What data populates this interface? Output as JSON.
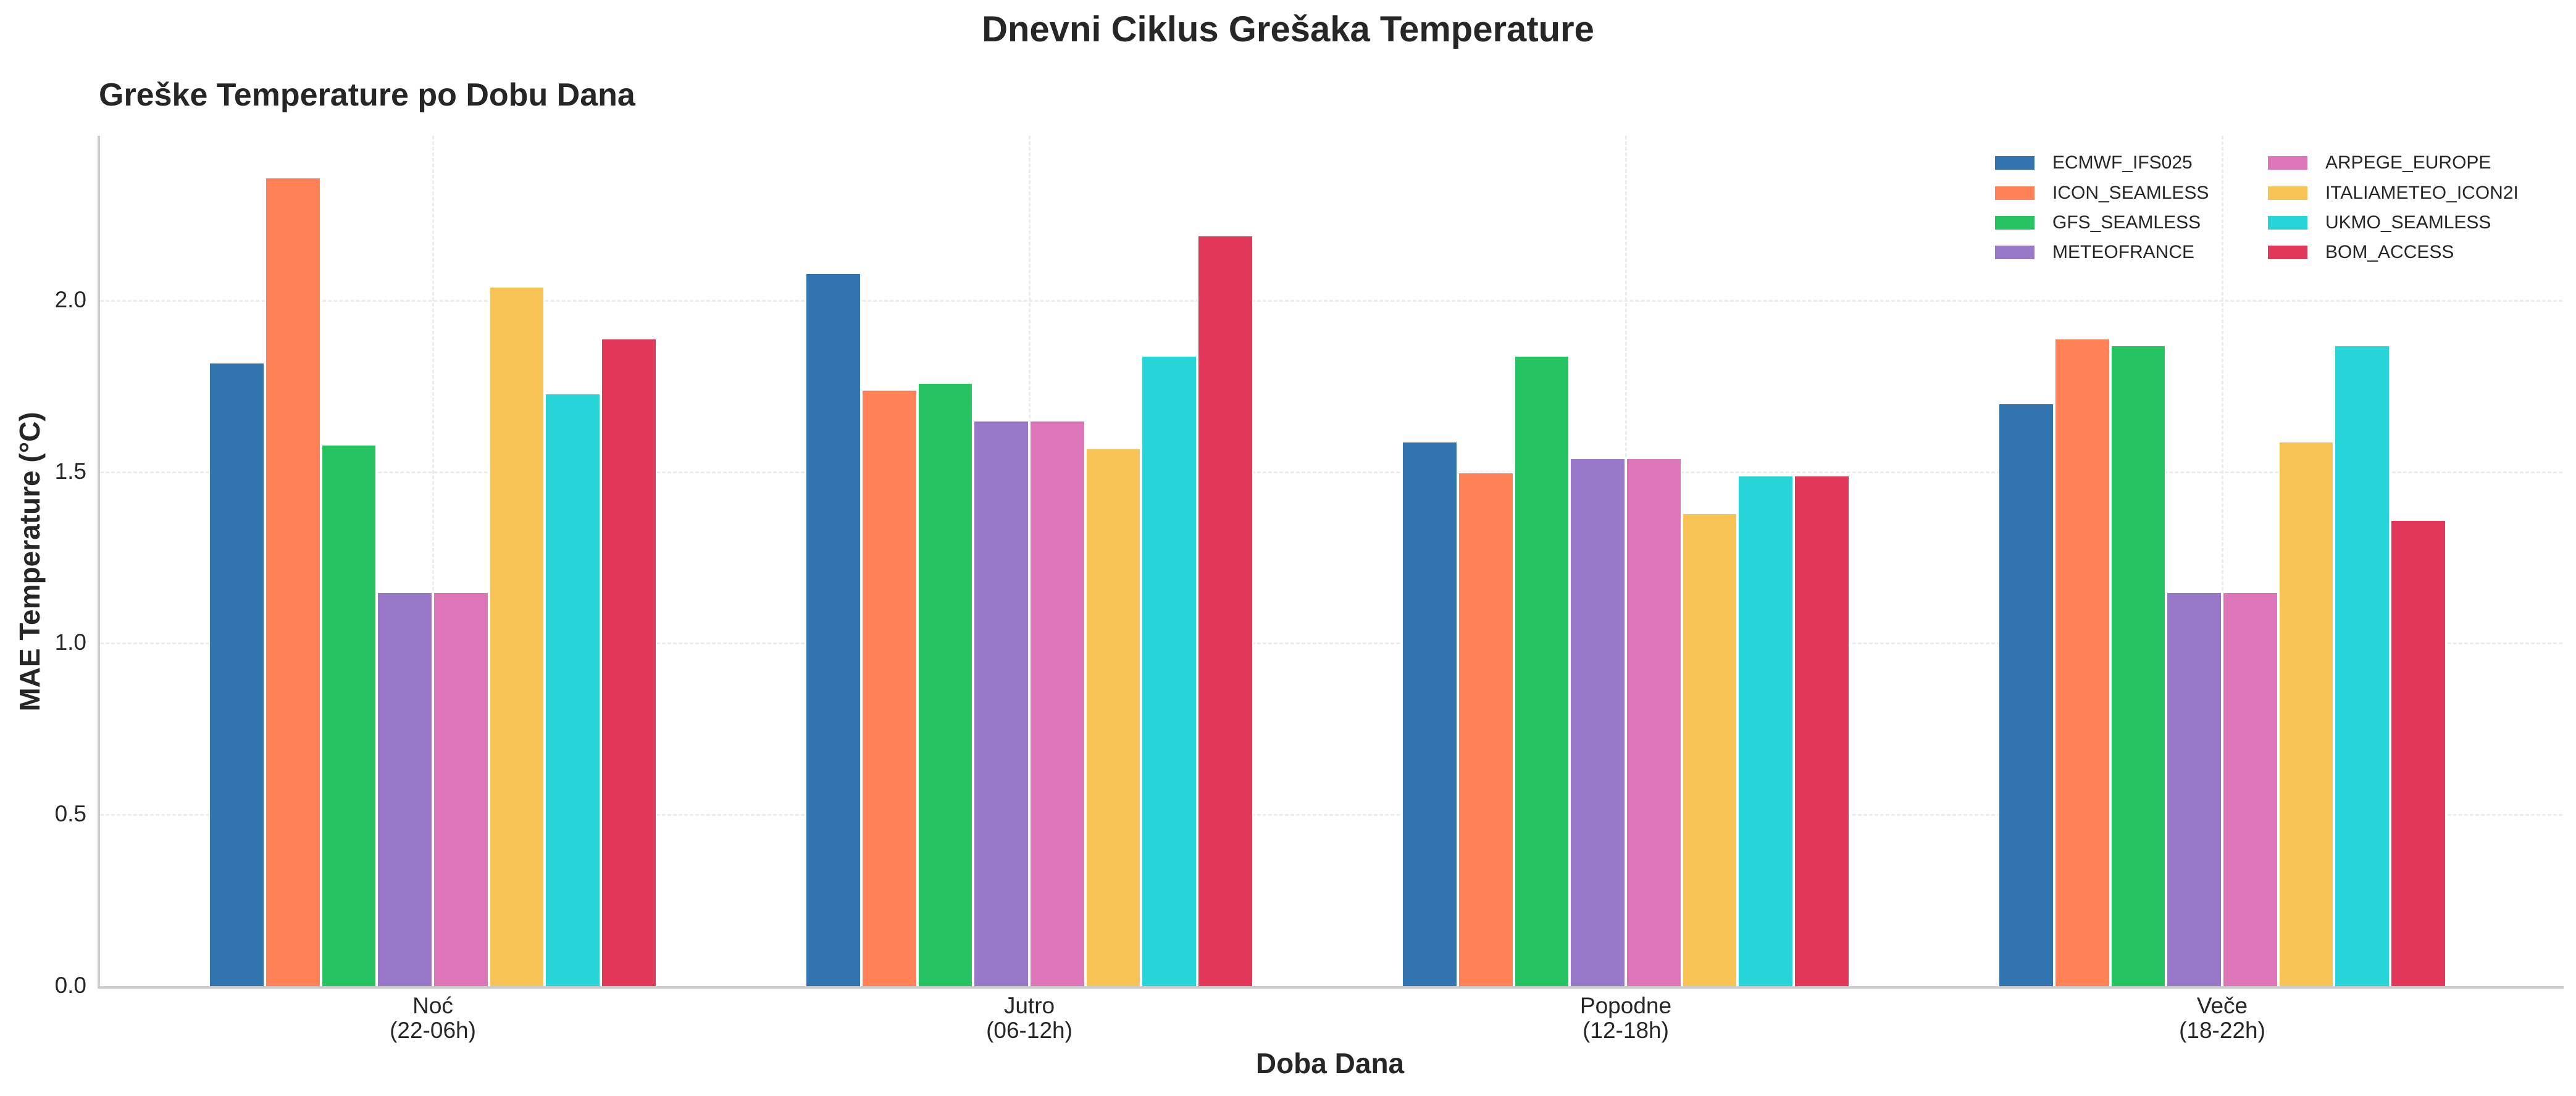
{
  "suptitle": "Dnevni Ciklus Grešaka Temperature",
  "subtitle": "Greške Temperature po Dobu Dana",
  "chart_data": {
    "type": "bar",
    "title": "Greške Temperature po Dobu Dana",
    "suptitle": "Dnevni Ciklus Grešaka Temperature",
    "xlabel": "Doba Dana",
    "ylabel": "MAE Temperature (°C)",
    "categories": [
      "Noć\n(22-06h)",
      "Jutro\n(06-12h)",
      "Popodne\n(12-18h)",
      "Veče\n(18-22h)"
    ],
    "category_lines": [
      [
        "Noć",
        "(22-06h)"
      ],
      [
        "Jutro",
        "(06-12h)"
      ],
      [
        "Popodne",
        "(12-18h)"
      ],
      [
        "Veče",
        "(18-22h)"
      ]
    ],
    "ylim": [
      0,
      2.48
    ],
    "yticks": [
      "0.0",
      "0.5",
      "1.0",
      "1.5",
      "2.0"
    ],
    "ytick_values": [
      0.0,
      0.5,
      1.0,
      1.5,
      2.0
    ],
    "grid": true,
    "legend_position": "upper right",
    "legend_columns": 2,
    "series": [
      {
        "name": "ECMWF_IFS025",
        "color": "#3274b0",
        "values": [
          1.82,
          2.08,
          1.59,
          1.7
        ]
      },
      {
        "name": "ICON_SEAMLESS",
        "color": "#ff8155",
        "values": [
          2.36,
          1.74,
          1.5,
          1.89
        ]
      },
      {
        "name": "GFS_SEAMLESS",
        "color": "#26c363",
        "values": [
          1.58,
          1.76,
          1.84,
          1.87
        ]
      },
      {
        "name": "METEOFRANCE",
        "color": "#9878c9",
        "values": [
          1.15,
          1.65,
          1.54,
          1.15
        ]
      },
      {
        "name": "ARPEGE_EUROPE",
        "color": "#dc76b9",
        "values": [
          1.15,
          1.65,
          1.54,
          1.15
        ]
      },
      {
        "name": "ITALIAMETEO_ICON2I",
        "color": "#f7c355",
        "values": [
          2.04,
          1.57,
          1.38,
          1.59
        ]
      },
      {
        "name": "UKMO_SEAMLESS",
        "color": "#27d5d9",
        "values": [
          1.73,
          1.84,
          1.49,
          1.87
        ]
      },
      {
        "name": "BOM_ACCESS",
        "color": "#e13759",
        "values": [
          1.89,
          2.19,
          1.49,
          1.36
        ]
      }
    ]
  }
}
